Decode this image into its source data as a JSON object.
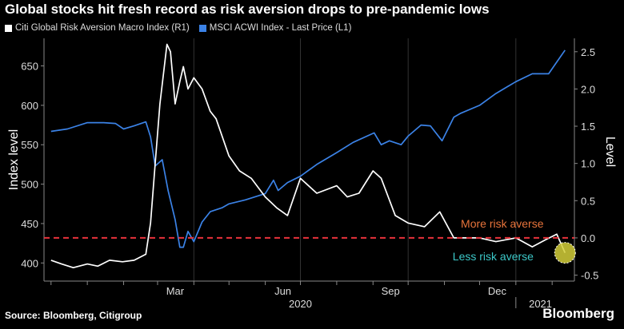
{
  "title": "Global stocks hit fresh record as risk aversion drops to pre-pandemic lows",
  "source": "Source: Bloomberg, Citigroup",
  "brand": "Bloomberg",
  "chart_data": {
    "type": "line",
    "legend": [
      {
        "name": "Citi Global Risk Aversion Macro Index (R1)",
        "color": "#ffffff"
      },
      {
        "name": "MSCI ACWI Index - Last Price (L1)",
        "color": "#3b82e6"
      }
    ],
    "ylabel_left": "Index level",
    "ylabel_right": "Level",
    "y_left": {
      "min": 377,
      "max": 685,
      "ticks": [
        400,
        450,
        500,
        550,
        600,
        650
      ]
    },
    "y_right": {
      "min": -0.58,
      "max": 2.68,
      "ticks": [
        -0.5,
        0.0,
        0.5,
        1.0,
        1.5,
        2.0,
        2.5
      ]
    },
    "x_ticks": [
      "Mar",
      "Jun",
      "Sep",
      "Dec"
    ],
    "year_labels": [
      "2020",
      "2021"
    ],
    "reference_line": {
      "value": 0.0,
      "axis": "right",
      "color": "#e8333b",
      "style": "dashed"
    },
    "annotations": [
      {
        "text": "More risk averse",
        "color": "#e8743b"
      },
      {
        "text": "Less risk averse",
        "color": "#3cc8c8"
      }
    ],
    "series": [
      {
        "name": "MSCI ACWI Index - Last Price (L1)",
        "axis": "left",
        "color": "#3b82e6",
        "x": [
          "2019-12-01",
          "2019-12-15",
          "2020-01-01",
          "2020-01-15",
          "2020-01-25",
          "2020-02-01",
          "2020-02-10",
          "2020-02-20",
          "2020-02-24",
          "2020-02-28",
          "2020-03-05",
          "2020-03-10",
          "2020-03-16",
          "2020-03-20",
          "2020-03-23",
          "2020-03-27",
          "2020-04-01",
          "2020-04-08",
          "2020-04-15",
          "2020-04-25",
          "2020-05-01",
          "2020-05-15",
          "2020-06-01",
          "2020-06-08",
          "2020-06-12",
          "2020-06-20",
          "2020-07-01",
          "2020-07-15",
          "2020-08-01",
          "2020-08-15",
          "2020-09-02",
          "2020-09-08",
          "2020-09-15",
          "2020-09-25",
          "2020-10-01",
          "2020-10-12",
          "2020-10-20",
          "2020-10-30",
          "2020-11-09",
          "2020-11-15",
          "2020-12-01",
          "2020-12-15",
          "2021-01-01",
          "2021-01-15",
          "2021-01-29",
          "2021-02-05",
          "2021-02-12"
        ],
        "values": [
          567,
          570,
          578,
          578,
          577,
          570,
          574,
          579,
          560,
          523,
          531,
          492,
          455,
          420,
          420,
          440,
          427,
          452,
          465,
          470,
          475,
          480,
          488,
          505,
          492,
          502,
          510,
          525,
          540,
          553,
          565,
          550,
          555,
          550,
          561,
          575,
          574,
          555,
          585,
          590,
          600,
          615,
          630,
          640,
          640,
          655,
          670
        ]
      },
      {
        "name": "Citi Global Risk Aversion Macro Index (R1)",
        "axis": "right",
        "color": "#ffffff",
        "x": [
          "2019-12-01",
          "2019-12-10",
          "2019-12-20",
          "2020-01-01",
          "2020-01-10",
          "2020-01-20",
          "2020-01-31",
          "2020-02-10",
          "2020-02-20",
          "2020-02-24",
          "2020-02-28",
          "2020-03-03",
          "2020-03-09",
          "2020-03-12",
          "2020-03-16",
          "2020-03-20",
          "2020-03-23",
          "2020-03-27",
          "2020-04-01",
          "2020-04-08",
          "2020-04-15",
          "2020-04-20",
          "2020-05-01",
          "2020-05-10",
          "2020-05-20",
          "2020-06-01",
          "2020-06-11",
          "2020-06-20",
          "2020-07-01",
          "2020-07-15",
          "2020-08-01",
          "2020-08-10",
          "2020-08-20",
          "2020-09-01",
          "2020-09-08",
          "2020-09-20",
          "2020-10-01",
          "2020-10-15",
          "2020-10-28",
          "2020-11-09",
          "2020-11-20",
          "2020-12-01",
          "2020-12-15",
          "2021-01-01",
          "2021-01-15",
          "2021-01-27",
          "2021-02-05",
          "2021-02-12"
        ],
        "values": [
          -0.3,
          -0.35,
          -0.4,
          -0.35,
          -0.38,
          -0.3,
          -0.32,
          -0.3,
          -0.22,
          0.2,
          1.0,
          1.8,
          2.6,
          2.5,
          1.8,
          2.1,
          2.3,
          2.0,
          2.15,
          2.0,
          1.7,
          1.6,
          1.1,
          0.9,
          0.8,
          0.55,
          0.4,
          0.3,
          0.8,
          0.6,
          0.7,
          0.55,
          0.6,
          0.9,
          0.8,
          0.3,
          0.2,
          0.15,
          0.35,
          0.0,
          0.0,
          0.0,
          -0.05,
          0.0,
          -0.12,
          -0.02,
          0.05,
          -0.2
        ]
      }
    ]
  }
}
